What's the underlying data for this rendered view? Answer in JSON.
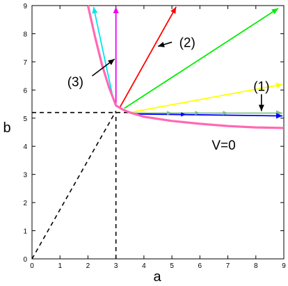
{
  "chart_data": {
    "type": "line",
    "title": "",
    "xlabel": "a",
    "ylabel": "b",
    "xlim": [
      0,
      9
    ],
    "ylim": [
      0,
      9
    ],
    "x_ticks": [
      "0",
      "1",
      "2",
      "3",
      "4",
      "5",
      "6",
      "7",
      "8",
      "9"
    ],
    "y_ticks": [
      "0",
      "1",
      "2",
      "3",
      "4",
      "5",
      "6",
      "7",
      "8",
      "9"
    ],
    "grid": false,
    "curve": {
      "color": "#ff69b4",
      "points": [
        [
          2.0,
          9.0
        ],
        [
          2.25,
          7.9
        ],
        [
          2.5,
          6.9
        ],
        [
          2.75,
          6.1
        ],
        [
          3.0,
          5.45
        ],
        [
          3.25,
          5.3
        ],
        [
          3.5,
          5.2
        ],
        [
          4.0,
          5.05
        ],
        [
          5.0,
          4.9
        ],
        [
          6.0,
          4.8
        ],
        [
          7.0,
          4.72
        ],
        [
          8.0,
          4.67
        ],
        [
          9.0,
          4.65
        ]
      ]
    },
    "dashed_lines": [
      {
        "color": "#000000",
        "points": [
          [
            0.0,
            0.0
          ],
          [
            3.0,
            5.25
          ]
        ]
      },
      {
        "color": "#000000",
        "points": [
          [
            3.0,
            0.0
          ],
          [
            3.0,
            5.2
          ]
        ]
      },
      {
        "color": "#000000",
        "points": [
          [
            0.0,
            5.2
          ],
          [
            3.45,
            5.2
          ]
        ]
      }
    ],
    "vectors": [
      {
        "color": "#00e5ee",
        "from": [
          2.9,
          5.7
        ],
        "to": [
          2.2,
          8.95
        ]
      },
      {
        "color": "#ee00ee",
        "from": [
          3.0,
          5.45
        ],
        "to": [
          3.0,
          8.95
        ]
      },
      {
        "color": "#ff0000",
        "from": [
          3.15,
          5.4
        ],
        "to": [
          5.15,
          8.95
        ]
      },
      {
        "color": "#00ee00",
        "from": [
          3.3,
          5.35
        ],
        "to": [
          8.8,
          8.9
        ]
      },
      {
        "color": "#ffff00",
        "from": [
          3.5,
          5.2
        ],
        "to": [
          8.95,
          6.2
        ]
      },
      {
        "color": "#7fbf7f",
        "from": [
          3.55,
          5.18
        ],
        "to": [
          8.95,
          5.18
        ]
      },
      {
        "color": "#0000ff",
        "from": [
          3.6,
          5.15
        ],
        "to": [
          8.95,
          5.08
        ]
      }
    ],
    "mid_arrowheads": [
      {
        "color": "#7fbf7f",
        "at": [
          5.0,
          5.18
        ],
        "dir": [
          1,
          0
        ]
      },
      {
        "color": "#7fbf7f",
        "at": [
          6.0,
          5.18
        ],
        "dir": [
          1,
          0
        ]
      },
      {
        "color": "#7fbf7f",
        "at": [
          7.0,
          5.18
        ],
        "dir": [
          1,
          0
        ]
      },
      {
        "color": "#0000ff",
        "at": [
          5.5,
          5.13
        ],
        "dir": [
          1,
          -0.01
        ]
      }
    ],
    "annotations": [
      {
        "text": "(1)",
        "pos": [
          8.2,
          6.15
        ],
        "arrow_from": [
          8.2,
          5.85
        ],
        "arrow_to": [
          8.2,
          5.25
        ]
      },
      {
        "text": "(2)",
        "pos": [
          5.55,
          7.7
        ],
        "arrow_from": [
          5.0,
          7.7
        ],
        "arrow_to": [
          4.5,
          7.55
        ]
      },
      {
        "text": "(3)",
        "pos": [
          1.55,
          6.3
        ],
        "arrow_from": [
          2.15,
          6.5
        ],
        "arrow_to": [
          2.95,
          7.1
        ]
      },
      {
        "text": "V=0",
        "pos": [
          6.85,
          4.05
        ]
      }
    ]
  }
}
